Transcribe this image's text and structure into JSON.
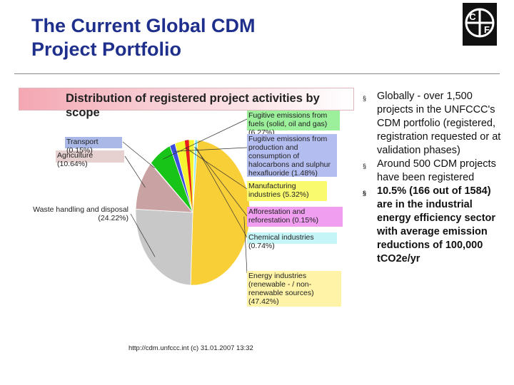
{
  "slide": {
    "title_line1": "The Current Global CDM",
    "title_line2": "Project Portfolio",
    "logo_text": "CF",
    "bullets": [
      {
        "text": "Globally - over 1,500 projects in the UNFCCC's CDM portfolio (registered, registration requested or at validation phases)",
        "bold": false
      },
      {
        "text": "Around 500 CDM projects have been registered",
        "bold": false
      },
      {
        "text": "10.5% (166 out of 1584) are in the industrial energy efficiency sector with average emission reductions of 100,000 tCO2e/yr",
        "bold": true
      }
    ],
    "bullet_marker": "§",
    "source": "http://cdm.unfccc.int (c) 31.01.2007 13:32"
  },
  "chart_data": {
    "type": "pie",
    "title": "Distribution of registered project activities by scope",
    "slices": [
      {
        "label": "Energy industries (renewable - / non-renewable sources) (47.42%)",
        "value": 47.42,
        "color": "#f9cf38",
        "label_bg": "#fef3a6"
      },
      {
        "label": "Waste handling and disposal (24.22%)",
        "value": 24.22,
        "color": "#c8c8c8",
        "label_bg": "#ffffff"
      },
      {
        "label": "Agriculture (10.64%)",
        "value": 10.64,
        "color": "#c9a3a3",
        "label_bg": "#e7d0d0"
      },
      {
        "label": "Transport (0.15%)",
        "value": 0.15,
        "color": "#2a2f8e",
        "label_bg": "#a9b8e6"
      },
      {
        "label": "Fugitive emissions from fuels (solid, oil and gas) (6.27%)",
        "value": 6.27,
        "color": "#18c418",
        "label_bg": "#9cf09c"
      },
      {
        "label": "Fugitive emissions from production and consumption of halocarbons and sulphur hexafluoride (1.48%)",
        "value": 1.48,
        "color": "#3c4de0",
        "label_bg": "#b4bdf0"
      },
      {
        "label": "Manufacturing industries (5.32%)",
        "value": 5.32,
        "color": "#f6f630",
        "label_bg": "#fafa6e"
      },
      {
        "label": "Afforestation and reforestation (0.15%)",
        "value": 0.15,
        "color": "#f43df4",
        "label_bg": "#f09ef0"
      },
      {
        "label": "Chemical industries (0.74%)",
        "value": 0.74,
        "color": "#86e8ee",
        "label_bg": "#c6f5f8"
      }
    ],
    "red_slice_color": "#e81c1c"
  }
}
